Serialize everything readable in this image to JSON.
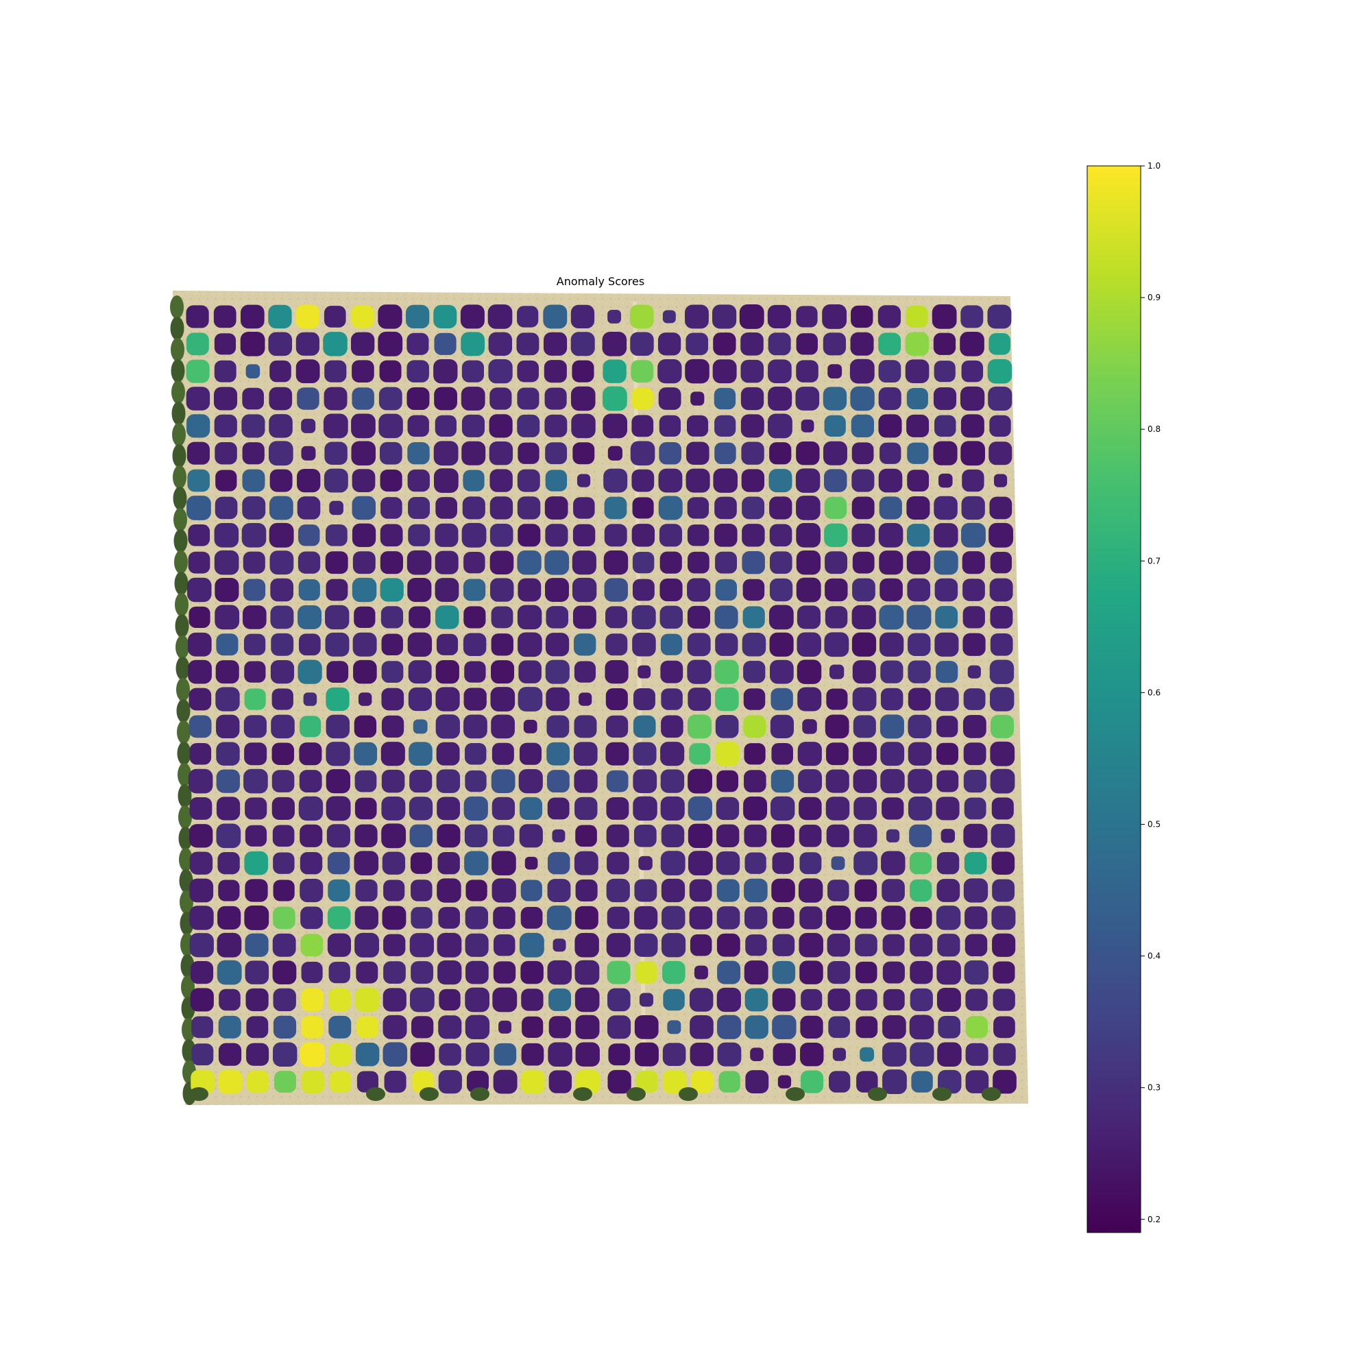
{
  "chart_data": {
    "type": "heatmap",
    "title": "Anomaly Scores",
    "colorbar": {
      "range": [
        0.19,
        1.0
      ],
      "ticks": [
        0.2,
        0.3,
        0.4,
        0.5,
        0.6,
        0.7,
        0.8,
        0.9,
        1.0
      ],
      "tick_labels": [
        "0.2",
        "0.3",
        "0.4",
        "0.5",
        "0.6",
        "0.7",
        "0.8",
        "0.9",
        "1.0"
      ],
      "colormap": "viridis"
    },
    "grid": {
      "rows": 29,
      "cols": 30
    },
    "high_score_cells": [
      {
        "row": 0,
        "col": 4,
        "value": 0.98
      },
      {
        "row": 0,
        "col": 6,
        "value": 0.97
      },
      {
        "row": 0,
        "col": 3,
        "value": 0.58
      },
      {
        "row": 0,
        "col": 9,
        "value": 0.6
      },
      {
        "row": 0,
        "col": 16,
        "value": 0.88
      },
      {
        "row": 0,
        "col": 26,
        "value": 0.92
      },
      {
        "row": 1,
        "col": 0,
        "value": 0.72
      },
      {
        "row": 1,
        "col": 5,
        "value": 0.6
      },
      {
        "row": 1,
        "col": 10,
        "value": 0.62
      },
      {
        "row": 1,
        "col": 25,
        "value": 0.7
      },
      {
        "row": 1,
        "col": 26,
        "value": 0.86
      },
      {
        "row": 1,
        "col": 29,
        "value": 0.65
      },
      {
        "row": 2,
        "col": 0,
        "value": 0.76
      },
      {
        "row": 2,
        "col": 15,
        "value": 0.66
      },
      {
        "row": 2,
        "col": 16,
        "value": 0.82
      },
      {
        "row": 2,
        "col": 29,
        "value": 0.66
      },
      {
        "row": 3,
        "col": 15,
        "value": 0.7
      },
      {
        "row": 3,
        "col": 16,
        "value": 0.97
      },
      {
        "row": 7,
        "col": 23,
        "value": 0.8
      },
      {
        "row": 8,
        "col": 23,
        "value": 0.72
      },
      {
        "row": 10,
        "col": 7,
        "value": 0.58
      },
      {
        "row": 11,
        "col": 9,
        "value": 0.58
      },
      {
        "row": 13,
        "col": 19,
        "value": 0.78
      },
      {
        "row": 14,
        "col": 2,
        "value": 0.76
      },
      {
        "row": 14,
        "col": 5,
        "value": 0.68
      },
      {
        "row": 14,
        "col": 19,
        "value": 0.76
      },
      {
        "row": 15,
        "col": 4,
        "value": 0.73
      },
      {
        "row": 15,
        "col": 18,
        "value": 0.8
      },
      {
        "row": 15,
        "col": 20,
        "value": 0.9
      },
      {
        "row": 15,
        "col": 29,
        "value": 0.8
      },
      {
        "row": 16,
        "col": 18,
        "value": 0.76
      },
      {
        "row": 16,
        "col": 19,
        "value": 0.95
      },
      {
        "row": 20,
        "col": 2,
        "value": 0.66
      },
      {
        "row": 20,
        "col": 26,
        "value": 0.77
      },
      {
        "row": 20,
        "col": 28,
        "value": 0.66
      },
      {
        "row": 21,
        "col": 26,
        "value": 0.74
      },
      {
        "row": 22,
        "col": 3,
        "value": 0.82
      },
      {
        "row": 22,
        "col": 5,
        "value": 0.72
      },
      {
        "row": 23,
        "col": 4,
        "value": 0.86
      },
      {
        "row": 24,
        "col": 15,
        "value": 0.78
      },
      {
        "row": 24,
        "col": 16,
        "value": 0.95
      },
      {
        "row": 24,
        "col": 17,
        "value": 0.74
      },
      {
        "row": 25,
        "col": 4,
        "value": 0.98
      },
      {
        "row": 25,
        "col": 5,
        "value": 0.96
      },
      {
        "row": 25,
        "col": 6,
        "value": 0.95
      },
      {
        "row": 26,
        "col": 4,
        "value": 0.98
      },
      {
        "row": 26,
        "col": 6,
        "value": 0.97
      },
      {
        "row": 26,
        "col": 28,
        "value": 0.86
      },
      {
        "row": 27,
        "col": 4,
        "value": 0.99
      },
      {
        "row": 27,
        "col": 5,
        "value": 0.96
      },
      {
        "row": 28,
        "col": 0,
        "value": 0.96
      },
      {
        "row": 28,
        "col": 1,
        "value": 0.97
      },
      {
        "row": 28,
        "col": 2,
        "value": 0.96
      },
      {
        "row": 28,
        "col": 3,
        "value": 0.82
      },
      {
        "row": 28,
        "col": 4,
        "value": 0.95
      },
      {
        "row": 28,
        "col": 5,
        "value": 0.96
      },
      {
        "row": 28,
        "col": 8,
        "value": 0.97
      },
      {
        "row": 28,
        "col": 12,
        "value": 0.96
      },
      {
        "row": 28,
        "col": 14,
        "value": 0.96
      },
      {
        "row": 28,
        "col": 16,
        "value": 0.94
      },
      {
        "row": 28,
        "col": 17,
        "value": 0.96
      },
      {
        "row": 28,
        "col": 18,
        "value": 0.97
      },
      {
        "row": 28,
        "col": 19,
        "value": 0.8
      },
      {
        "row": 28,
        "col": 22,
        "value": 0.76
      }
    ],
    "background_value": 0.25
  }
}
